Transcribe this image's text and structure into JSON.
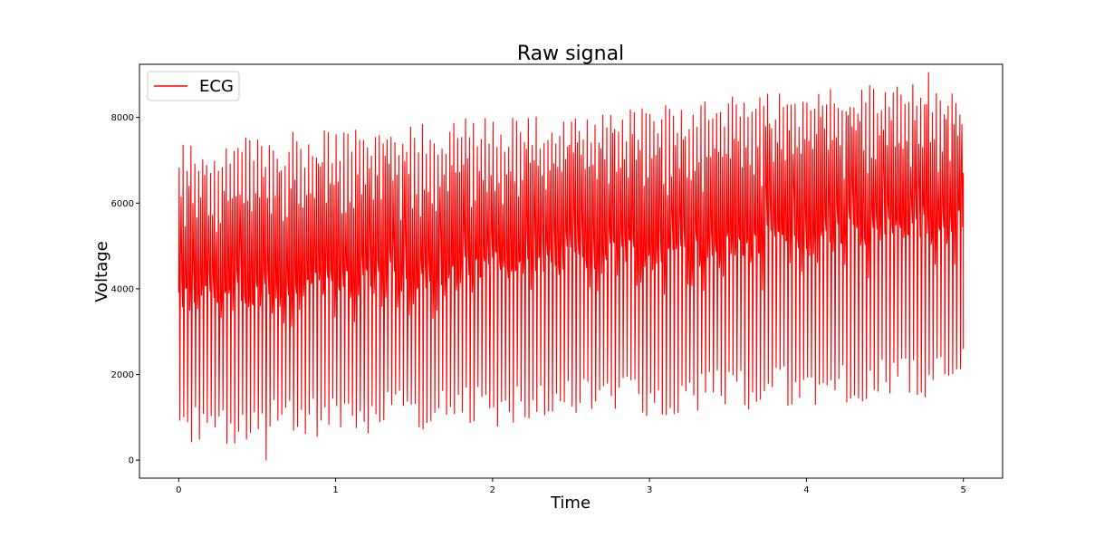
{
  "chart_data": {
    "type": "line",
    "title": "Raw signal",
    "xlabel": "Time",
    "ylabel": "Voltage",
    "xlim": [
      -0.25,
      5.25
    ],
    "ylim": [
      -420,
      9240
    ],
    "xticks": [
      0,
      1,
      2,
      3,
      4,
      5
    ],
    "yticks": [
      0,
      2000,
      4000,
      6000,
      8000
    ],
    "grid": false,
    "legend_position": "top-left",
    "series": [
      {
        "name": "ECG",
        "color": "#ff0000",
        "x_start": 0,
        "x_end": 5,
        "beats": 200,
        "peak_start": 7000,
        "peak_end": 8500,
        "trough_start": 800,
        "trough_end": 2000,
        "baseline_start": 3800,
        "baseline_end": 5600,
        "max": 9050,
        "min": 0
      }
    ]
  }
}
